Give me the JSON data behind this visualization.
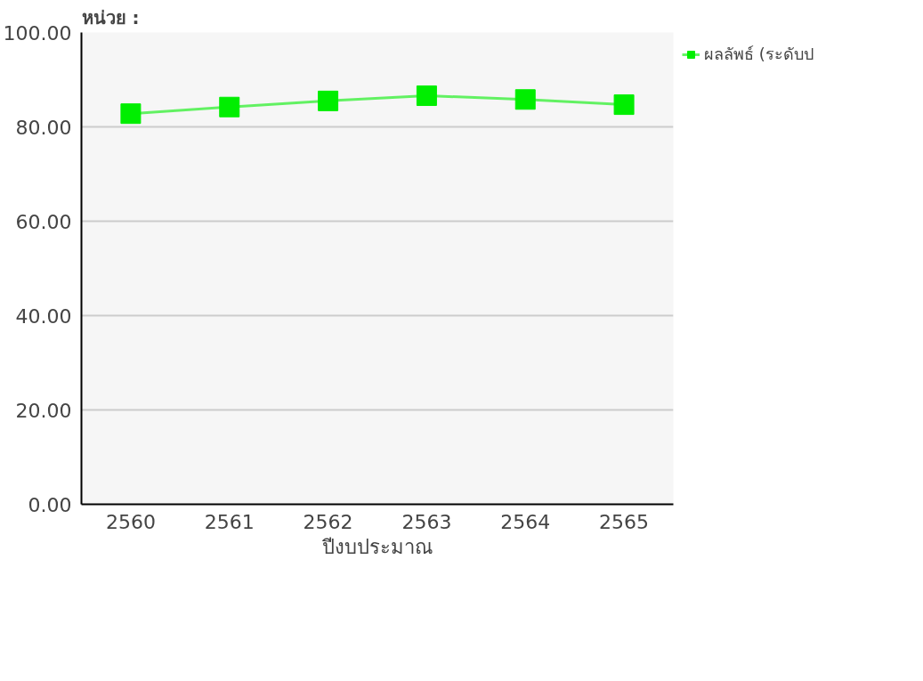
{
  "chart_data": {
    "type": "line",
    "title": "หน่วย :",
    "xlabel": "ปีงบประมาณ",
    "categories": [
      "2560",
      "2561",
      "2562",
      "2563",
      "2564",
      "2565"
    ],
    "series": [
      {
        "name": "ผลลัพธ์ (ระดับป",
        "color": "#00ee00",
        "values": [
          82.8,
          84.2,
          85.5,
          86.6,
          85.8,
          84.7
        ]
      }
    ],
    "ylim": [
      0,
      100
    ],
    "yticks": [
      {
        "value": 0,
        "label": "0.00"
      },
      {
        "value": 20,
        "label": "20.00"
      },
      {
        "value": 40,
        "label": "40.00"
      },
      {
        "value": 60,
        "label": "60.00"
      },
      {
        "value": 80,
        "label": "80.00"
      },
      {
        "value": 100,
        "label": "100.00"
      }
    ],
    "grid": "y",
    "legend": "top right",
    "marker": "square",
    "line_style": "solid"
  }
}
